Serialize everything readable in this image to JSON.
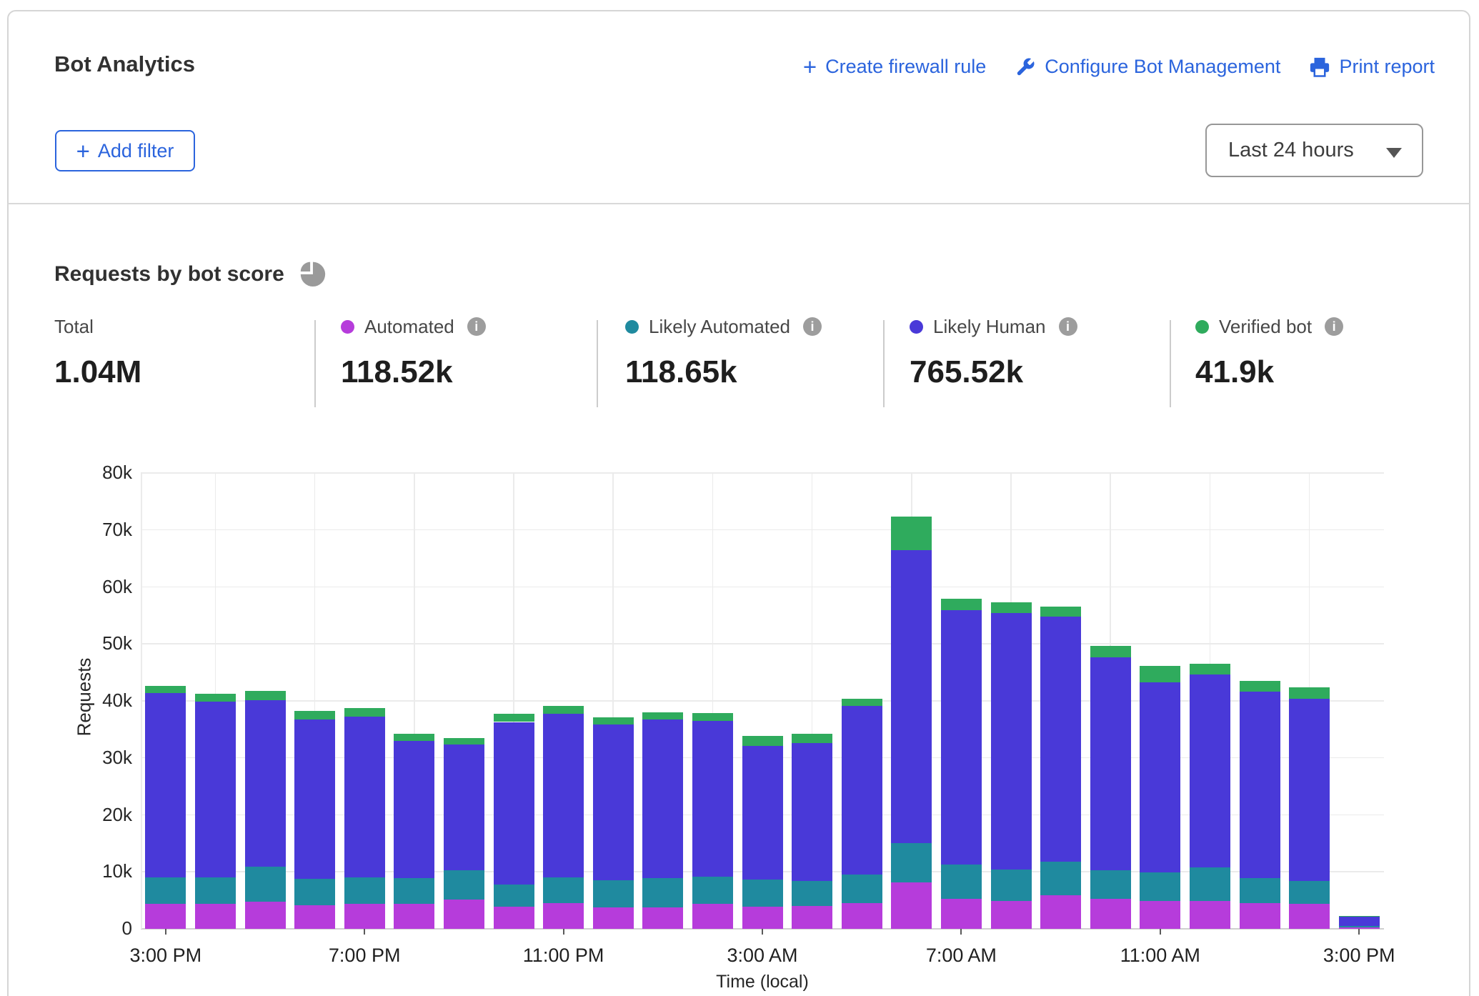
{
  "header": {
    "title": "Bot Analytics",
    "actions": [
      {
        "label": "Create firewall rule",
        "icon": "plus-icon"
      },
      {
        "label": "Configure Bot Management",
        "icon": "wrench-icon"
      },
      {
        "label": "Print report",
        "icon": "printer-icon"
      }
    ],
    "add_filter_label": "Add filter",
    "time_range_value": "Last 24 hours"
  },
  "section": {
    "title": "Requests by bot score",
    "icon": "pie-chart-icon"
  },
  "stats": {
    "total": {
      "label": "Total",
      "value": "1.04M"
    },
    "series": [
      {
        "label": "Automated",
        "value": "118.52k",
        "color": "#b63cdb"
      },
      {
        "label": "Likely Automated",
        "value": "118.65k",
        "color": "#1f8a9f"
      },
      {
        "label": "Likely Human",
        "value": "765.52k",
        "color": "#4939d8"
      },
      {
        "label": "Verified bot",
        "value": "41.9k",
        "color": "#2fab5d"
      }
    ]
  },
  "chart_data": {
    "type": "bar",
    "stacked": true,
    "title": "Requests by bot score",
    "xlabel": "Time (local)",
    "ylabel": "Requests",
    "ylim": [
      0,
      80000
    ],
    "ytick_step": 10000,
    "ytick_labels": [
      "0",
      "10k",
      "20k",
      "30k",
      "40k",
      "50k",
      "60k",
      "70k",
      "80k"
    ],
    "grid": true,
    "x_times": [
      "3:00 PM",
      "4:00 PM",
      "5:00 PM",
      "6:00 PM",
      "7:00 PM",
      "8:00 PM",
      "9:00 PM",
      "10:00 PM",
      "11:00 PM",
      "12:00 AM",
      "1:00 AM",
      "2:00 AM",
      "3:00 AM",
      "4:00 AM",
      "5:00 AM",
      "6:00 AM",
      "7:00 AM",
      "8:00 AM",
      "9:00 AM",
      "10:00 AM",
      "11:00 AM",
      "12:00 PM",
      "1:00 PM",
      "2:00 PM",
      "3:00 PM"
    ],
    "x_tick_indexes": [
      0,
      4,
      8,
      12,
      16,
      20,
      24
    ],
    "x_tick_labels": [
      "3:00 PM",
      "7:00 PM",
      "11:00 PM",
      "3:00 AM",
      "7:00 AM",
      "11:00 AM",
      "3:00 PM"
    ],
    "series": [
      {
        "name": "Automated",
        "color": "#b63cdb",
        "values": [
          4400,
          4400,
          4800,
          4100,
          4400,
          4400,
          5200,
          3900,
          4500,
          3800,
          3800,
          4400,
          3900,
          4000,
          4500,
          8100,
          5300,
          4900,
          5900,
          5300,
          4900,
          4900,
          4500,
          4400,
          300
        ]
      },
      {
        "name": "Likely Automated",
        "color": "#1f8a9f",
        "values": [
          4600,
          4600,
          6100,
          4700,
          4600,
          4500,
          5100,
          3900,
          4500,
          4700,
          5100,
          4800,
          4800,
          4400,
          5000,
          6900,
          6000,
          5500,
          5900,
          5000,
          5000,
          5900,
          4400,
          4000,
          250
        ]
      },
      {
        "name": "Likely Human",
        "color": "#4939d8",
        "values": [
          32400,
          30900,
          29200,
          28000,
          28200,
          24100,
          22000,
          28500,
          28800,
          27300,
          27900,
          27300,
          23400,
          24200,
          29600,
          51400,
          44600,
          45000,
          43000,
          37400,
          33400,
          33900,
          32700,
          32000,
          1650
        ]
      },
      {
        "name": "Verified bot",
        "color": "#2fab5d",
        "values": [
          1200,
          1300,
          1600,
          1400,
          1500,
          1200,
          1200,
          1400,
          1300,
          1300,
          1200,
          1400,
          1700,
          1600,
          1300,
          5900,
          2000,
          1900,
          1700,
          1900,
          2900,
          1800,
          1900,
          2000,
          100
        ]
      }
    ],
    "legend_position": "top"
  }
}
